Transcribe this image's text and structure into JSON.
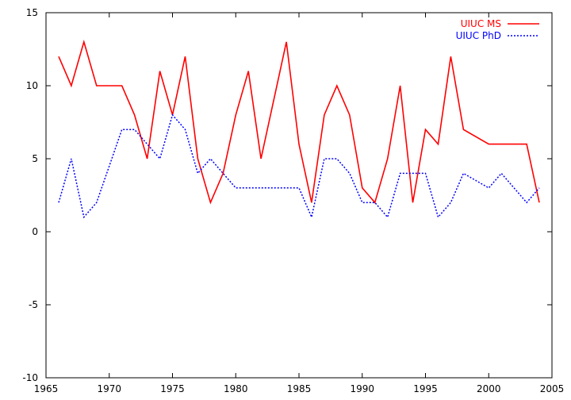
{
  "chart_data": {
    "type": "line",
    "title": "",
    "xlabel": "",
    "ylabel": "",
    "xlim": [
      1965,
      2005
    ],
    "ylim": [
      -10,
      15
    ],
    "x_ticks": [
      "1965",
      "1970",
      "1975",
      "1980",
      "1985",
      "1990",
      "1995",
      "2000",
      "2005"
    ],
    "y_ticks": [
      "-10",
      "-5",
      "0",
      "5",
      "10",
      "15"
    ],
    "grid": false,
    "legend_position": "top-right",
    "series": [
      {
        "name": "UIUC MS",
        "color": "#ff0000",
        "style": "solid",
        "points": [
          [
            1966,
            12
          ],
          [
            1967,
            10
          ],
          [
            1968,
            13
          ],
          [
            1969,
            10
          ],
          [
            1970,
            10
          ],
          [
            1971,
            10
          ],
          [
            1972,
            8
          ],
          [
            1973,
            5
          ],
          [
            1974,
            11
          ],
          [
            1975,
            8
          ],
          [
            1976,
            12
          ],
          [
            1977,
            5
          ],
          [
            1978,
            2
          ],
          [
            1979,
            4
          ],
          [
            1980,
            8
          ],
          [
            1981,
            11
          ],
          [
            1982,
            5
          ],
          [
            1983,
            9
          ],
          [
            1984,
            13
          ],
          [
            1985,
            6
          ],
          [
            1986,
            2
          ],
          [
            1987,
            8
          ],
          [
            1988,
            10
          ],
          [
            1989,
            8
          ],
          [
            1990,
            3
          ],
          [
            1991,
            2
          ],
          [
            1992,
            5
          ],
          [
            1993,
            10
          ],
          [
            1994,
            2
          ],
          [
            1995,
            7
          ],
          [
            1996,
            6
          ],
          [
            1997,
            12
          ],
          [
            1998,
            7
          ],
          [
            2000,
            6
          ],
          [
            2003,
            6
          ],
          [
            2004,
            2
          ]
        ]
      },
      {
        "name": "UIUC PhD",
        "color": "#0000ff",
        "style": "dotted",
        "points": [
          [
            1966,
            2
          ],
          [
            1967,
            5
          ],
          [
            1968,
            1
          ],
          [
            1969,
            2
          ],
          [
            1970,
            4.5
          ],
          [
            1971,
            7
          ],
          [
            1972,
            7
          ],
          [
            1973,
            6
          ],
          [
            1974,
            5
          ],
          [
            1975,
            8
          ],
          [
            1976,
            7
          ],
          [
            1977,
            4
          ],
          [
            1978,
            5
          ],
          [
            1979,
            4
          ],
          [
            1980,
            3
          ],
          [
            1981,
            3
          ],
          [
            1982,
            3
          ],
          [
            1983,
            3
          ],
          [
            1984,
            3
          ],
          [
            1985,
            3
          ],
          [
            1986,
            1
          ],
          [
            1987,
            5
          ],
          [
            1988,
            5
          ],
          [
            1989,
            4
          ],
          [
            1990,
            2
          ],
          [
            1991,
            2
          ],
          [
            1992,
            1
          ],
          [
            1993,
            4
          ],
          [
            1994,
            4
          ],
          [
            1995,
            4
          ],
          [
            1996,
            1
          ],
          [
            1997,
            2
          ],
          [
            1998,
            4
          ],
          [
            2000,
            3
          ],
          [
            2001,
            4
          ],
          [
            2003,
            2
          ],
          [
            2004,
            3
          ]
        ]
      }
    ]
  }
}
